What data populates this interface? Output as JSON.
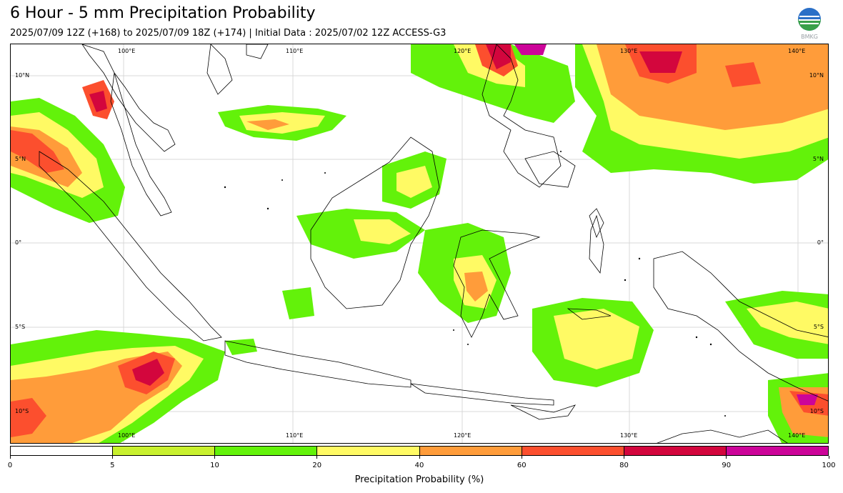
{
  "title": "6 Hour - 5 mm Precipitation Probability",
  "subtitle": "2025/07/09 12Z (+168) to 2025/07/09 18Z (+174) | Initial Data : 2025/07/02 12Z ACCESS-G3",
  "logo_text": "BMKG",
  "map": {
    "lon_labels_top": [
      "100°E",
      "110°E",
      "120°E",
      "130°E",
      "140°E"
    ],
    "lon_labels_bottom": [
      "100°E",
      "110°E",
      "120°E",
      "130°E",
      "140°E"
    ],
    "lat_labels_left": [
      "10°N",
      "5°N",
      "0°",
      "5°S",
      "10°S"
    ],
    "lat_labels_right": [
      "10°N",
      "5°N",
      "0°",
      "5°S",
      "10°S"
    ]
  },
  "colorbar": {
    "ticks": [
      "0",
      "5",
      "10",
      "20",
      "40",
      "60",
      "80",
      "90",
      "100"
    ],
    "colors": [
      "#ffffff",
      "#c8f02e",
      "#63f20a",
      "#fffa64",
      "#ff9c3a",
      "#fc4f2e",
      "#d3063d",
      "#cc0499"
    ],
    "label": "Precipitation Probability (%)"
  }
}
